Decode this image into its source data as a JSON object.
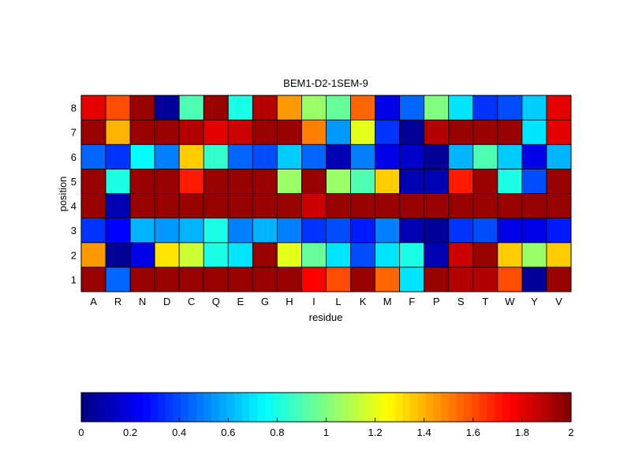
{
  "chart_data": {
    "type": "heatmap",
    "title": "BEM1-D2-1SEM-9",
    "xlabel": "residue",
    "ylabel": "position",
    "x_categories": [
      "A",
      "R",
      "N",
      "D",
      "C",
      "Q",
      "E",
      "G",
      "H",
      "I",
      "L",
      "K",
      "M",
      "F",
      "P",
      "S",
      "T",
      "W",
      "Y",
      "V"
    ],
    "y_categories": [
      "1",
      "2",
      "3",
      "4",
      "5",
      "6",
      "7",
      "8"
    ],
    "values": [
      [
        1.95,
        0.45,
        1.95,
        1.95,
        1.95,
        1.95,
        1.95,
        1.95,
        1.95,
        1.75,
        1.6,
        1.95,
        1.55,
        0.7,
        1.95,
        1.9,
        1.9,
        1.6,
        0.05,
        1.95
      ],
      [
        1.45,
        0.05,
        0.2,
        1.3,
        1.15,
        0.8,
        0.7,
        1.95,
        1.2,
        0.95,
        0.7,
        0.4,
        0.7,
        0.8,
        0.1,
        1.85,
        1.95,
        1.35,
        1.05,
        1.35
      ],
      [
        0.35,
        0.25,
        0.6,
        0.55,
        0.6,
        0.8,
        0.5,
        0.6,
        0.5,
        0.35,
        0.4,
        0.3,
        0.5,
        0.1,
        0.05,
        0.35,
        0.4,
        0.2,
        0.2,
        0.3
      ],
      [
        1.95,
        0.1,
        1.95,
        1.95,
        1.95,
        1.95,
        1.95,
        1.95,
        1.95,
        1.85,
        1.95,
        1.95,
        1.95,
        1.95,
        1.95,
        1.95,
        1.95,
        1.95,
        1.95,
        1.95
      ],
      [
        1.95,
        0.8,
        1.95,
        1.95,
        1.7,
        1.95,
        1.95,
        1.95,
        1.05,
        1.95,
        1.05,
        0.9,
        1.35,
        0.1,
        0.1,
        1.7,
        1.95,
        0.8,
        0.4,
        1.95
      ],
      [
        0.45,
        0.35,
        0.75,
        0.5,
        1.35,
        0.85,
        0.45,
        0.4,
        0.65,
        0.45,
        0.1,
        0.5,
        0.2,
        0.15,
        0.05,
        0.6,
        0.9,
        0.65,
        0.2,
        0.6
      ],
      [
        1.95,
        1.4,
        1.95,
        1.95,
        1.9,
        1.8,
        1.85,
        1.95,
        1.95,
        1.5,
        0.55,
        1.2,
        0.35,
        0.05,
        1.9,
        1.95,
        1.95,
        1.95,
        0.7,
        1.8
      ],
      [
        1.8,
        1.6,
        1.95,
        0.05,
        0.9,
        1.95,
        0.8,
        1.9,
        1.45,
        1.05,
        0.95,
        1.55,
        0.2,
        0.45,
        1.0,
        0.7,
        0.35,
        0.4,
        0.65,
        1.8
      ]
    ],
    "colorbar": {
      "colormap": "jet",
      "range": [
        0,
        2
      ],
      "tick_labels": [
        "0",
        "0.2",
        "0.4",
        "0.6",
        "0.8",
        "1",
        "1.2",
        "1.4",
        "1.6",
        "1.8",
        "2"
      ]
    }
  }
}
